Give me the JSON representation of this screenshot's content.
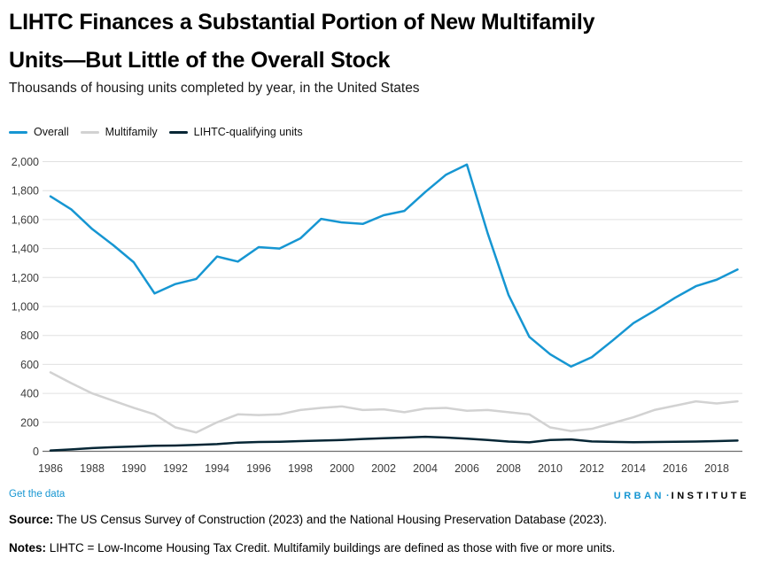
{
  "header": {
    "title_lines": [
      "LIHTC Finances a Substantial Portion of New Multifamily",
      "Units—But Little of the Overall Stock"
    ],
    "subtitle": "Thousands of housing units completed by year, in the United States"
  },
  "legend": [
    {
      "label": "Overall",
      "color": "#1696d2"
    },
    {
      "label": "Multifamily",
      "color": "#d2d2d2"
    },
    {
      "label": "LIHTC-qualifying units",
      "color": "#062635"
    }
  ],
  "chart_data": {
    "type": "line",
    "x": [
      1986,
      1987,
      1988,
      1989,
      1990,
      1991,
      1992,
      1993,
      1994,
      1995,
      1996,
      1997,
      1998,
      1999,
      2000,
      2001,
      2002,
      2003,
      2004,
      2005,
      2006,
      2007,
      2008,
      2009,
      2010,
      2011,
      2012,
      2013,
      2014,
      2015,
      2016,
      2017,
      2018,
      2019
    ],
    "series": [
      {
        "name": "Overall",
        "color": "#1696d2",
        "values": [
          1760,
          1670,
          1535,
          1425,
          1305,
          1090,
          1155,
          1190,
          1345,
          1310,
          1410,
          1400,
          1470,
          1605,
          1580,
          1570,
          1630,
          1660,
          1790,
          1910,
          1980,
          1505,
          1080,
          790,
          670,
          585,
          650,
          765,
          885,
          970,
          1060,
          1140,
          1185,
          1255
        ]
      },
      {
        "name": "Multifamily",
        "color": "#d2d2d2",
        "values": [
          545,
          470,
          400,
          350,
          300,
          255,
          165,
          130,
          200,
          255,
          250,
          255,
          285,
          300,
          310,
          285,
          290,
          270,
          295,
          300,
          280,
          285,
          270,
          255,
          165,
          140,
          155,
          195,
          235,
          285,
          315,
          345,
          330,
          345
        ]
      },
      {
        "name": "LIHTC-qualifying units",
        "color": "#062635",
        "values": [
          5,
          13,
          22,
          28,
          33,
          38,
          40,
          44,
          50,
          60,
          64,
          66,
          70,
          74,
          78,
          85,
          90,
          95,
          100,
          95,
          87,
          78,
          67,
          62,
          78,
          82,
          68,
          65,
          63,
          64,
          66,
          67,
          70,
          74
        ]
      }
    ],
    "title": "Thousands of housing units completed by year, in the United States",
    "xlabel": "",
    "ylabel": "",
    "ylim": [
      0,
      2000
    ],
    "ytick_step": 200,
    "xticks": [
      1986,
      1988,
      1990,
      1992,
      1994,
      1996,
      1998,
      2000,
      2002,
      2004,
      2006,
      2008,
      2010,
      2012,
      2014,
      2016,
      2018
    ],
    "grid": true,
    "legend_position": "top-left"
  },
  "footer": {
    "get_the_data": "Get the data",
    "logo": {
      "part1": "URBAN",
      "separator": "·",
      "part2": "INSTITUTE"
    },
    "source_label": "Source:",
    "source_text": " The US Census Survey of Construction (2023) and the National Housing Preservation Database (2023).",
    "notes_label": "Notes:",
    "notes_text": " LIHTC = Low-Income Housing Tax Credit. Multifamily buildings are defined as those with five or more units."
  },
  "colors": {
    "accent_blue": "#1696d2",
    "light_gray_series": "#d2d2d2",
    "dark_navy_series": "#062635",
    "gridline": "#e0e0e0",
    "axis_line": "#6e6e6e",
    "tick_text": "#3c3c3c"
  }
}
